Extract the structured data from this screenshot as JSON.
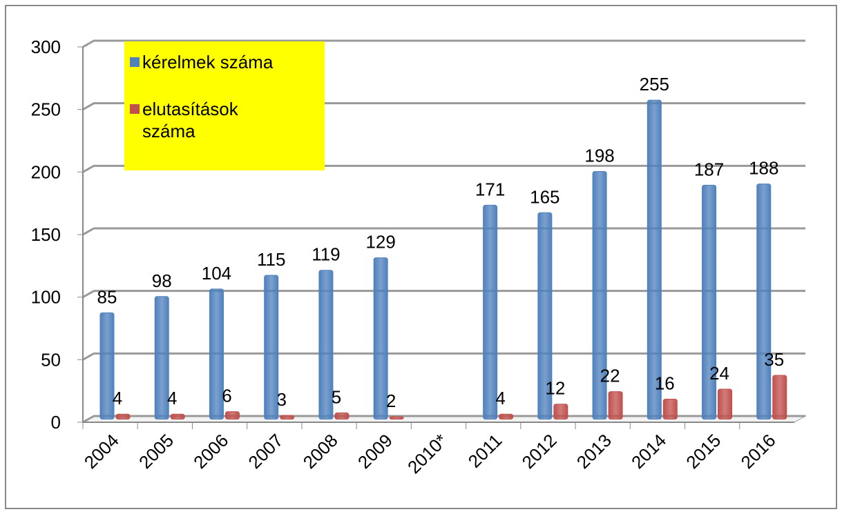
{
  "chart_data": {
    "type": "bar",
    "categories": [
      "2004",
      "2005",
      "2006",
      "2007",
      "2008",
      "2009",
      "2010*",
      "2011",
      "2012",
      "2013",
      "2014",
      "2015",
      "2016"
    ],
    "series": [
      {
        "name": "kérelmek száma",
        "color": "#4f81bd",
        "values": [
          85,
          98,
          104,
          115,
          119,
          129,
          null,
          171,
          165,
          198,
          255,
          187,
          188
        ]
      },
      {
        "name": "elutasítások száma",
        "color": "#c0504d",
        "values": [
          4,
          4,
          6,
          3,
          5,
          2,
          null,
          4,
          12,
          22,
          16,
          24,
          35
        ]
      }
    ],
    "ylim": [
      0,
      300
    ],
    "yticks": [
      0,
      50,
      100,
      150,
      200,
      250,
      300
    ],
    "grid": true,
    "legend": "top-left"
  }
}
